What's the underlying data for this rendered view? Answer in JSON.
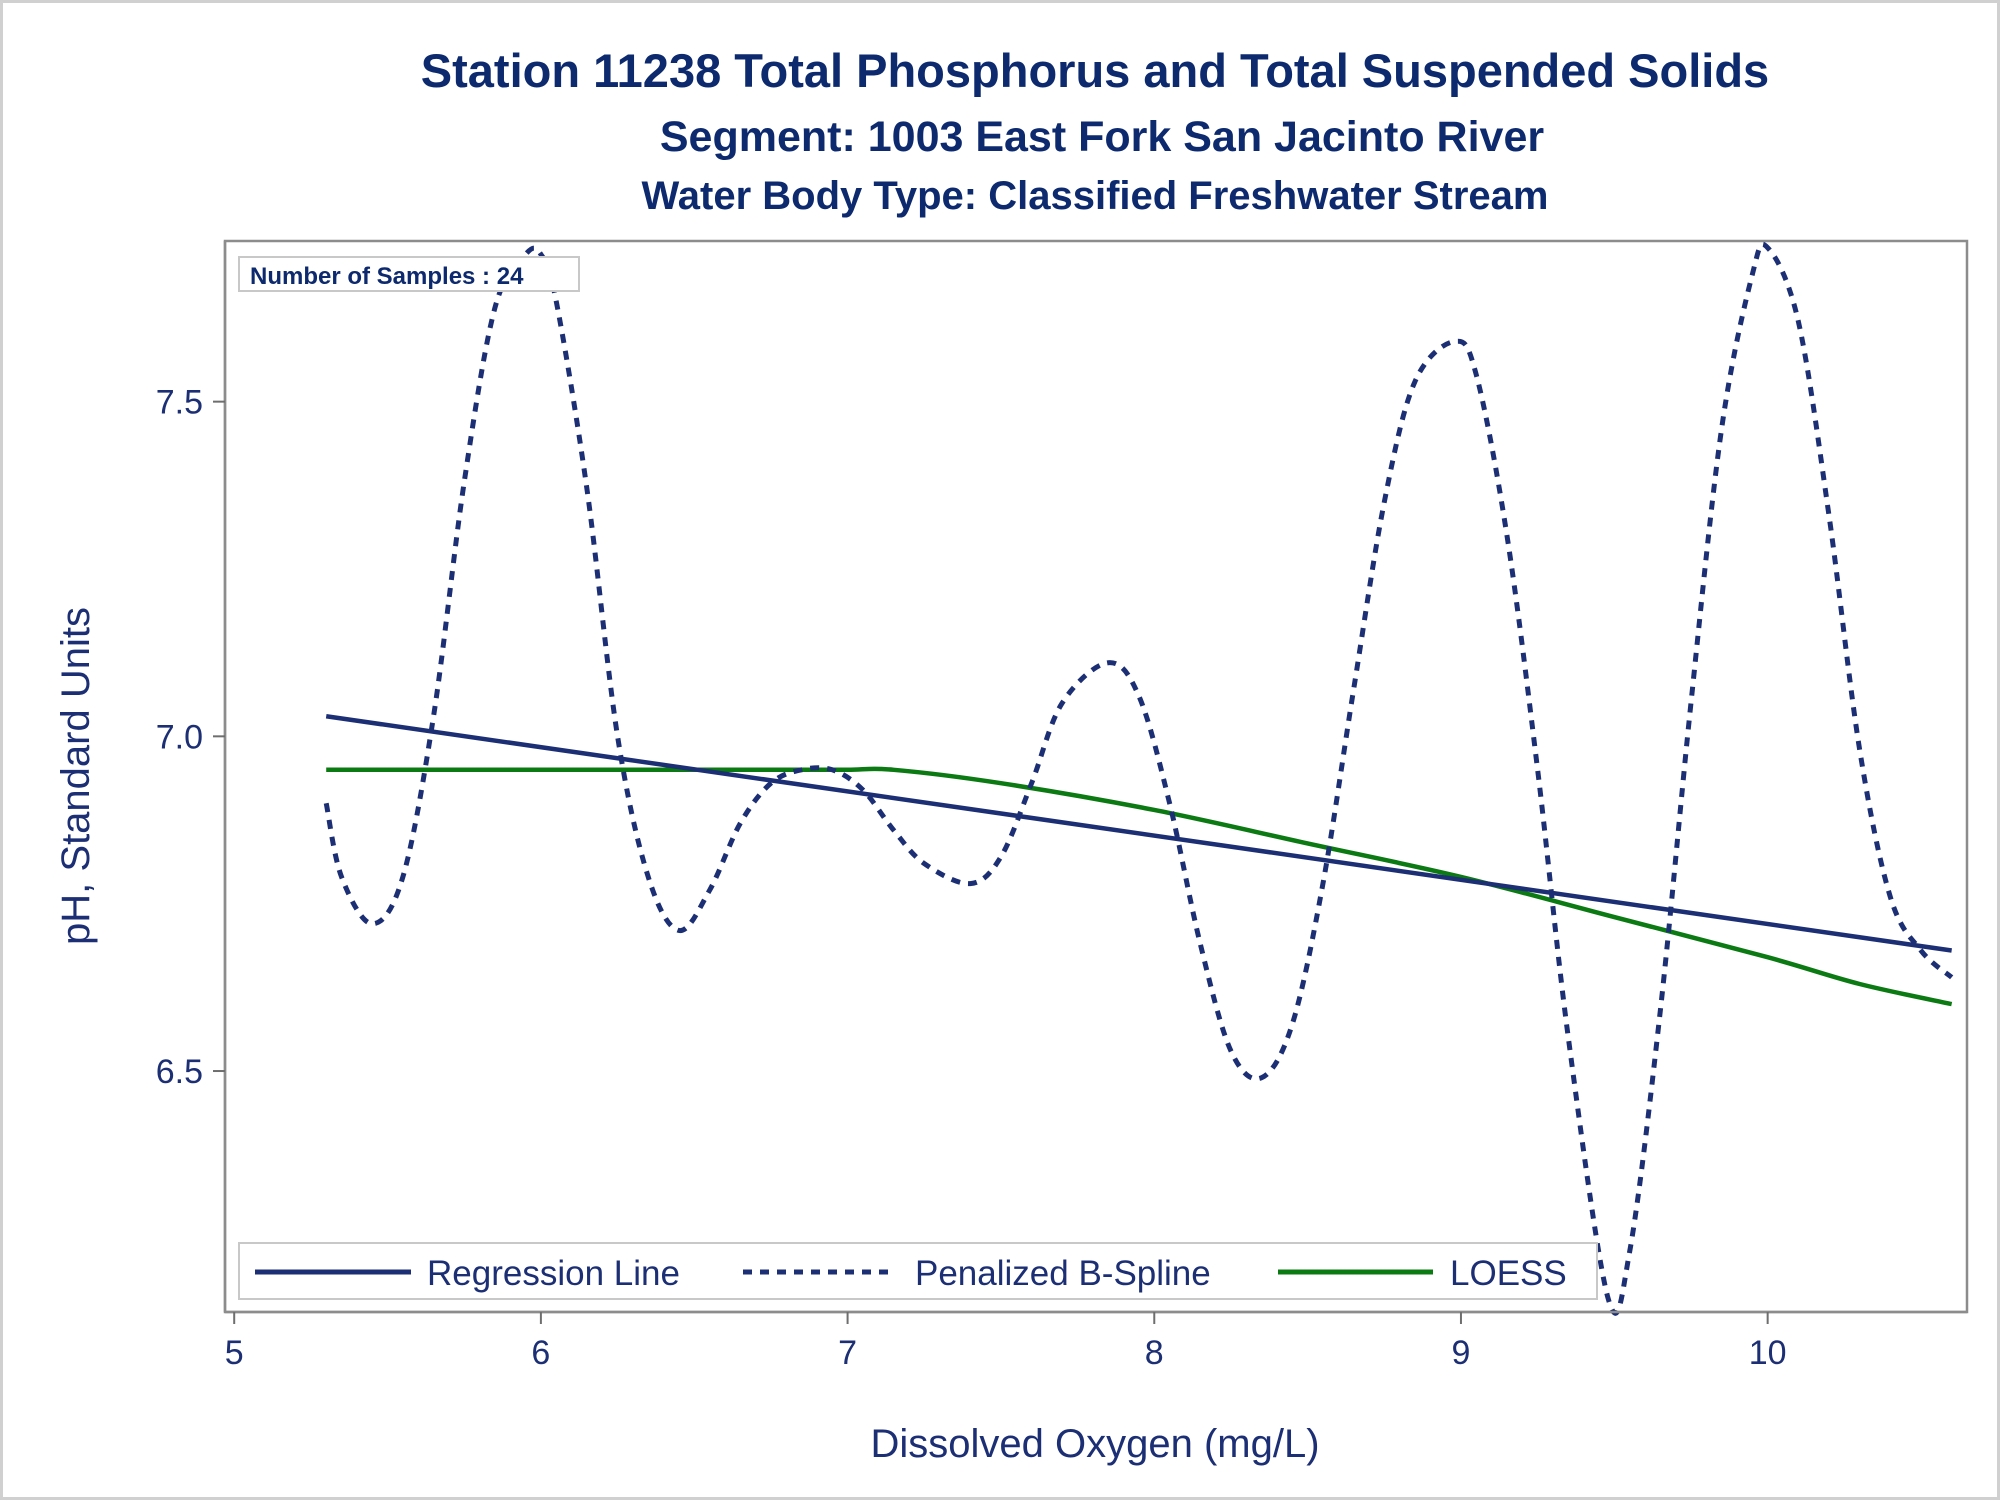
{
  "chart_data": {
    "type": "line",
    "title": "Station 11238  Total Phosphorus and Total Suspended Solids",
    "subtitle": "Segment: 1003  East Fork San Jacinto River",
    "subtitle2": "Water Body Type: Classified Freshwater Stream",
    "xlabel": "Dissolved Oxygen (mg/L)",
    "ylabel": "pH, Standard Units",
    "xlim": [
      4.97,
      10.65
    ],
    "ylim": [
      6.14,
      7.74
    ],
    "xticks": [
      "5",
      "6",
      "7",
      "8",
      "9",
      "10"
    ],
    "yticks": [
      "6.5",
      "7.0",
      "7.5"
    ],
    "xtick_values": [
      5,
      6,
      7,
      8,
      9,
      10
    ],
    "ytick_values": [
      6.5,
      7.0,
      7.5
    ],
    "grid": false,
    "annotation": "Number of Samples : 24",
    "legend_position": "bottom-left inside",
    "series": [
      {
        "name": "Regression Line",
        "color": "#1c2f74",
        "style": "solid",
        "x": [
          5.3,
          10.6
        ],
        "y": [
          7.03,
          6.68
        ]
      },
      {
        "name": "Penalized B-Spline",
        "color": "#1c2f74",
        "style": "dashed",
        "x": [
          5.3,
          5.35,
          5.45,
          5.55,
          5.65,
          5.75,
          5.85,
          5.95,
          6.0,
          6.05,
          6.15,
          6.25,
          6.35,
          6.45,
          6.55,
          6.65,
          6.75,
          6.85,
          6.95,
          7.05,
          7.15,
          7.25,
          7.4,
          7.5,
          7.6,
          7.7,
          7.85,
          7.95,
          8.05,
          8.15,
          8.25,
          8.35,
          8.45,
          8.55,
          8.65,
          8.75,
          8.85,
          8.98,
          9.05,
          9.15,
          9.25,
          9.35,
          9.48,
          9.55,
          9.65,
          9.75,
          9.85,
          9.95,
          10.0,
          10.1,
          10.2,
          10.3,
          10.4,
          10.5,
          10.6
        ],
        "y": [
          6.9,
          6.79,
          6.72,
          6.79,
          7.03,
          7.38,
          7.64,
          7.72,
          7.72,
          7.65,
          7.37,
          7.0,
          6.79,
          6.71,
          6.77,
          6.87,
          6.93,
          6.95,
          6.95,
          6.92,
          6.86,
          6.81,
          6.78,
          6.82,
          6.93,
          7.05,
          7.11,
          7.06,
          6.9,
          6.69,
          6.53,
          6.49,
          6.57,
          6.78,
          7.07,
          7.35,
          7.53,
          7.59,
          7.54,
          7.3,
          6.95,
          6.55,
          6.16,
          6.23,
          6.59,
          7.05,
          7.46,
          7.69,
          7.73,
          7.62,
          7.33,
          6.98,
          6.76,
          6.68,
          6.64
        ]
      },
      {
        "name": "LOESS",
        "color": "#0b7a12",
        "style": "solid",
        "x": [
          5.3,
          5.6,
          6.0,
          6.4,
          6.8,
          7.0,
          7.15,
          7.5,
          8.0,
          8.5,
          9.0,
          9.5,
          10.0,
          10.3,
          10.6
        ],
        "y": [
          6.95,
          6.95,
          6.95,
          6.95,
          6.95,
          6.95,
          6.95,
          6.93,
          6.89,
          6.84,
          6.79,
          6.73,
          6.67,
          6.63,
          6.6
        ]
      }
    ]
  }
}
